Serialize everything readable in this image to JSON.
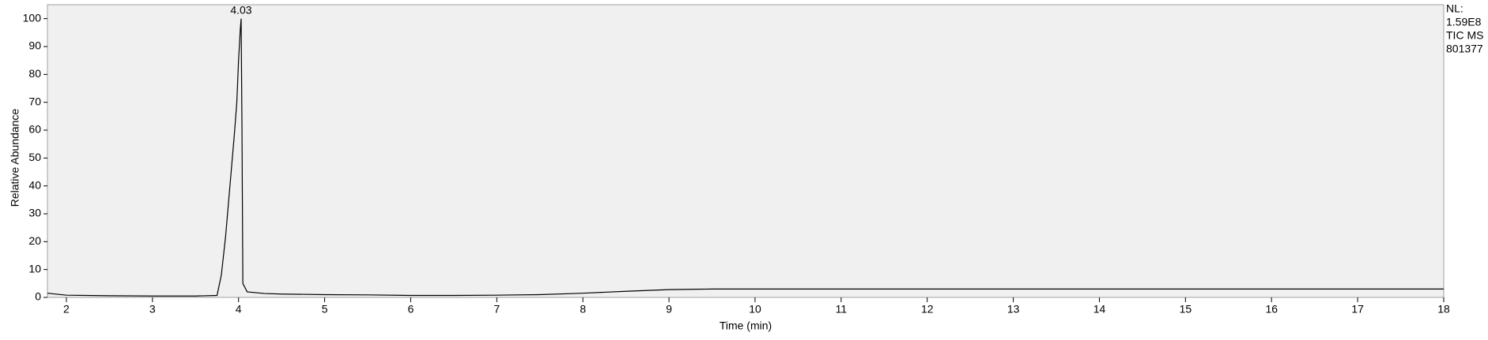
{
  "chart_data": {
    "type": "line",
    "x_label": "Time (min)",
    "y_label": "Relative Abundance",
    "x": [
      1.78,
      2,
      2.5,
      3,
      3.5,
      3.75,
      3.8,
      3.85,
      3.9,
      3.95,
      3.98,
      4.0,
      4.02,
      4.03,
      4.04,
      4.05,
      4.1,
      4.3,
      4.5,
      5,
      5.5,
      6,
      6.5,
      7,
      7.5,
      8,
      8.5,
      9,
      9.5,
      10,
      11,
      12,
      13,
      14,
      15,
      16,
      17,
      18
    ],
    "series": [
      {
        "color": "#000000",
        "values": [
          1.5,
          0.8,
          0.6,
          0.5,
          0.5,
          0.7,
          8,
          22,
          40,
          58,
          70,
          85,
          96,
          100,
          60,
          5,
          2,
          1.4,
          1.2,
          1.0,
          0.9,
          0.7,
          0.7,
          0.8,
          1.0,
          1.5,
          2.2,
          2.8,
          3.0,
          3.0,
          3.0,
          3.0,
          3.0,
          3.0,
          3.0,
          3.0,
          3.0,
          3.0
        ]
      }
    ],
    "annotations": [
      {
        "text": "4.03",
        "x": 4.03,
        "y": 100
      }
    ],
    "side_text": [
      "NL:",
      "1.59E8",
      "TIC  MS",
      "801377"
    ],
    "xlim": [
      1.78,
      18
    ],
    "ylim": [
      0,
      105
    ],
    "xticks": [
      2,
      3,
      4,
      5,
      6,
      7,
      8,
      9,
      10,
      11,
      12,
      13,
      14,
      15,
      16,
      17,
      18
    ],
    "yticks": [
      0,
      10,
      20,
      30,
      40,
      50,
      60,
      70,
      80,
      90,
      100
    ]
  }
}
